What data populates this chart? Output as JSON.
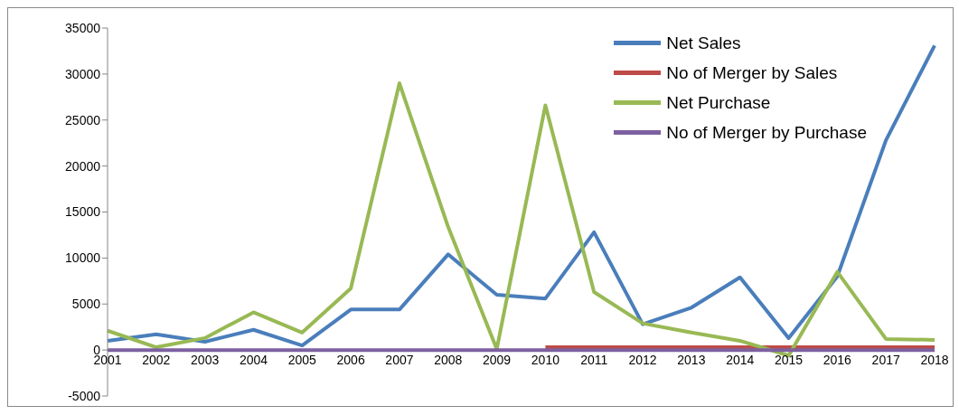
{
  "chart_data": {
    "type": "line",
    "categories": [
      "2001",
      "2002",
      "2003",
      "2004",
      "2005",
      "2006",
      "2007",
      "2008",
      "2009",
      "2010",
      "2011",
      "2012",
      "2013",
      "2014",
      "2015",
      "2016",
      "2017",
      "2018"
    ],
    "series": [
      {
        "name": "Net Sales",
        "color": "#4a7ebb",
        "values": [
          1000,
          1700,
          900,
          2200,
          500,
          4400,
          4400,
          10400,
          6000,
          5600,
          12800,
          2800,
          4600,
          7900,
          1300,
          8000,
          22800,
          33100
        ]
      },
      {
        "name": "No of Merger by Sales",
        "color": "#be4b48",
        "values": [
          null,
          null,
          null,
          null,
          null,
          null,
          null,
          null,
          null,
          300,
          300,
          300,
          300,
          300,
          300,
          300,
          300,
          300
        ]
      },
      {
        "name": "Net Purchase",
        "color": "#98b954",
        "values": [
          2100,
          300,
          1300,
          4100,
          1900,
          6700,
          29000,
          13400,
          100,
          26600,
          6300,
          2900,
          1900,
          1000,
          -600,
          8500,
          1200,
          1100
        ]
      },
      {
        "name": "No of Merger by Purchase",
        "color": "#7d60a0",
        "values": [
          0,
          0,
          0,
          0,
          0,
          0,
          0,
          0,
          0,
          0,
          0,
          0,
          0,
          0,
          0,
          0,
          0,
          0
        ]
      }
    ],
    "ylim": [
      -5000,
      35000
    ],
    "yticks": [
      -5000,
      0,
      5000,
      10000,
      15000,
      20000,
      25000,
      30000,
      35000
    ],
    "legend": "top right",
    "marker": "none"
  }
}
